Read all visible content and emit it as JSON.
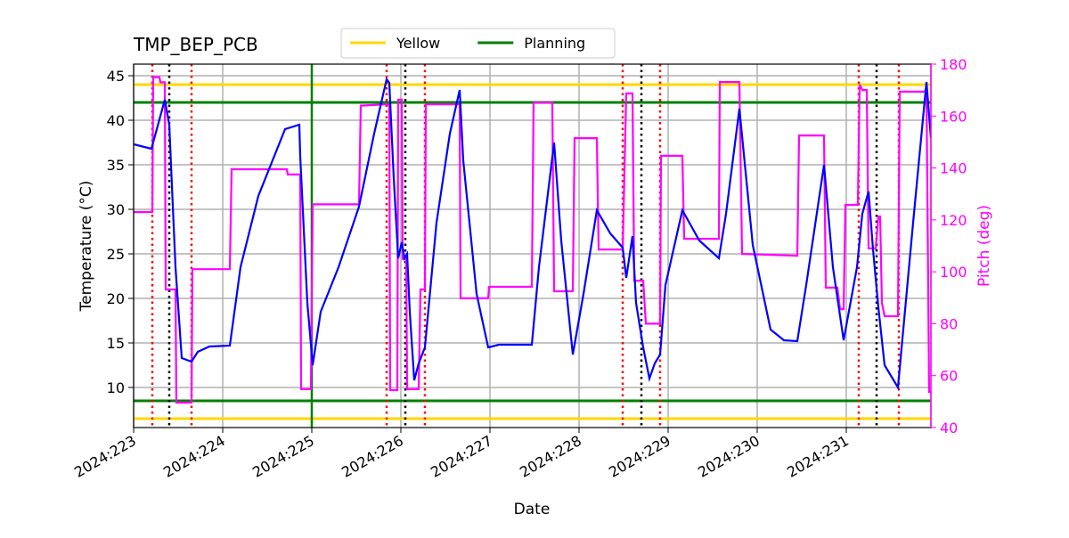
{
  "chart_data": {
    "type": "line",
    "title": "TMP_BEP_PCB",
    "xlabel": "Date",
    "ylabel": "Temperature (°C)",
    "y2label": "Pitch (deg)",
    "y2color": "#ff00ff",
    "xlim": [
      223,
      231.95
    ],
    "xticks": [
      {
        "value": 223,
        "label": "2024:223"
      },
      {
        "value": 224,
        "label": "2024:224"
      },
      {
        "value": 225,
        "label": "2024:225"
      },
      {
        "value": 226,
        "label": "2024:226"
      },
      {
        "value": 227,
        "label": "2024:227"
      },
      {
        "value": 228,
        "label": "2024:228"
      },
      {
        "value": 229,
        "label": "2024:229"
      },
      {
        "value": 230,
        "label": "2024:230"
      },
      {
        "value": 231,
        "label": "2024:231"
      }
    ],
    "ylim": [
      5.5,
      46.3
    ],
    "yticks": [
      10,
      15,
      20,
      25,
      30,
      35,
      40,
      45
    ],
    "y2lim": [
      40,
      180
    ],
    "y2ticks": [
      40,
      60,
      80,
      100,
      120,
      140,
      160,
      180
    ],
    "grid": true,
    "legend": "top",
    "series": [
      {
        "color": "#0000ff",
        "x": [
          223.0,
          223.2,
          223.35,
          223.4,
          223.47,
          223.54,
          223.65,
          223.72,
          223.85,
          224.08,
          224.2,
          224.4,
          224.7,
          224.86,
          224.87,
          224.95,
          225.01,
          225.1,
          225.3,
          225.53,
          225.7,
          225.84,
          225.87,
          225.92,
          225.97,
          226.01,
          226.04,
          226.07,
          226.1,
          226.15,
          226.2,
          226.27,
          226.4,
          226.55,
          226.66,
          226.7,
          226.85,
          226.98,
          227.1,
          227.47,
          227.55,
          227.72,
          227.8,
          227.93,
          228.05,
          228.2,
          228.35,
          228.49,
          228.53,
          228.6,
          228.64,
          228.72,
          228.79,
          228.85,
          228.91,
          228.97,
          229.16,
          229.35,
          229.57,
          229.65,
          229.8,
          229.95,
          230.15,
          230.3,
          230.45,
          230.55,
          230.75,
          230.85,
          230.97,
          231.12,
          231.18,
          231.25,
          231.3,
          231.36,
          231.43,
          231.58,
          231.75,
          231.9,
          231.95
        ],
        "values": [
          37.3,
          36.8,
          42.3,
          39.5,
          23.5,
          13.3,
          12.9,
          14.0,
          14.6,
          14.7,
          23.5,
          31.5,
          39.0,
          39.5,
          36,
          19.5,
          12.5,
          18.5,
          23.5,
          30.3,
          38.5,
          44.6,
          44.2,
          33.5,
          24.5,
          26.3,
          24.5,
          25,
          18.5,
          10.8,
          12.7,
          14.5,
          28.5,
          38.5,
          43.4,
          35.5,
          20.5,
          14.5,
          14.8,
          14.8,
          23.5,
          37.5,
          26.5,
          13.7,
          20.5,
          29.9,
          27.3,
          25.7,
          22.3,
          27,
          19.5,
          14.5,
          11,
          12.7,
          13.7,
          21.5,
          29.9,
          26.5,
          24.5,
          29.5,
          41.3,
          26,
          16.5,
          15.3,
          15.2,
          21.5,
          35,
          23.5,
          15.3,
          23.5,
          29.5,
          32,
          25.5,
          19,
          12.5,
          10,
          28.5,
          44.3,
          38
        ]
      },
      {
        "color": "#ff00ff",
        "axis": "y2",
        "x": [
          223.0,
          223.21,
          223.22,
          223.29,
          223.3,
          223.35,
          223.36,
          223.47,
          223.48,
          223.65,
          223.66,
          224.08,
          224.1,
          224.72,
          224.73,
          224.87,
          224.88,
          224.99,
          225.01,
          225.53,
          225.55,
          225.84,
          225.87,
          225.88,
          225.96,
          225.97,
          226.01,
          226.02,
          226.06,
          226.07,
          226.2,
          226.22,
          226.27,
          226.28,
          226.66,
          226.67,
          226.98,
          226.99,
          227.47,
          227.49,
          227.7,
          227.72,
          227.93,
          227.95,
          228.2,
          228.22,
          228.49,
          228.53,
          228.6,
          228.62,
          228.72,
          228.75,
          228.91,
          228.92,
          229.16,
          229.18,
          229.57,
          229.58,
          229.8,
          229.83,
          230.45,
          230.47,
          230.75,
          230.77,
          230.9,
          230.93,
          230.97,
          230.99,
          231.13,
          231.15,
          231.18,
          231.23,
          231.25,
          231.33,
          231.36,
          231.38,
          231.4,
          231.43,
          231.58,
          231.6,
          231.87,
          231.9,
          231.93,
          231.95
        ],
        "values": [
          123,
          123,
          175,
          175,
          173,
          173,
          93.2,
          93.2,
          49.6,
          49.6,
          101,
          101,
          139.5,
          139.5,
          137.5,
          137.5,
          54.8,
          54.8,
          126,
          126,
          164,
          164.5,
          164.5,
          54.4,
          54.4,
          166.3,
          166.3,
          105,
          105,
          54.8,
          54.8,
          93.2,
          93.2,
          164.5,
          164.5,
          89.8,
          89.8,
          94.2,
          94.2,
          165.2,
          165.2,
          92.5,
          92.5,
          151.5,
          151.5,
          108.6,
          108.6,
          168.7,
          168.7,
          96.6,
          96.6,
          80,
          80,
          144.7,
          144.7,
          112.7,
          112.7,
          173.1,
          173.1,
          106.9,
          106.2,
          152.5,
          152.5,
          93.9,
          93.9,
          85.6,
          85.6,
          125.8,
          125.8,
          172.1,
          170,
          170,
          109,
          109,
          121.3,
          121.3,
          88,
          82.9,
          82.9,
          169.4,
          169.4,
          170,
          53.7,
          53.7
        ]
      }
    ],
    "hlines": [
      {
        "name": "Yellow",
        "color": "#ffd700",
        "values": [
          44,
          6.5
        ]
      },
      {
        "name": "Planning",
        "color": "#008000",
        "values": [
          42,
          8.5
        ]
      }
    ],
    "vlines": [
      {
        "color": "#008000",
        "style": "solid",
        "x": [
          225
        ]
      },
      {
        "color": "#ff0000",
        "style": "dotted",
        "x": [
          223.21,
          223.65,
          225.84,
          226.27,
          228.49,
          228.91,
          231.14,
          231.59
        ]
      },
      {
        "color": "#000000",
        "style": "dotted",
        "x": [
          223.4,
          226.05,
          228.7,
          231.34
        ]
      }
    ]
  }
}
